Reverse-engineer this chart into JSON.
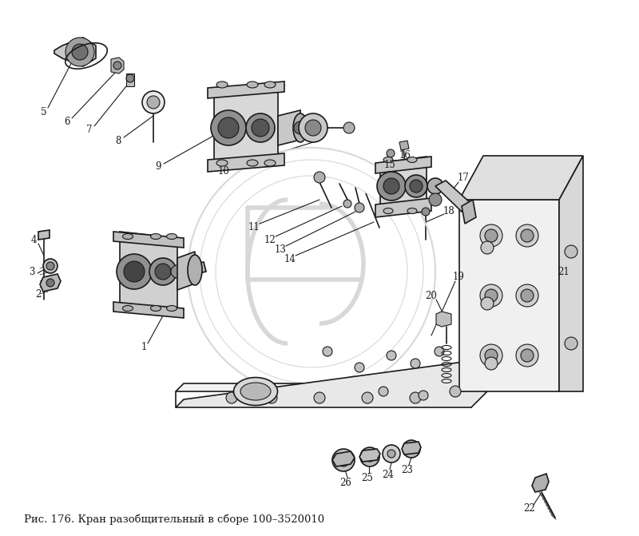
{
  "caption": "Рис. 176. Кран разобщительный в сборе 100–3520010",
  "bg_color": "#ffffff",
  "dc": "#1a1a1a",
  "fig_width": 8.0,
  "fig_height": 6.71,
  "wm_color": "#d8d8d8"
}
